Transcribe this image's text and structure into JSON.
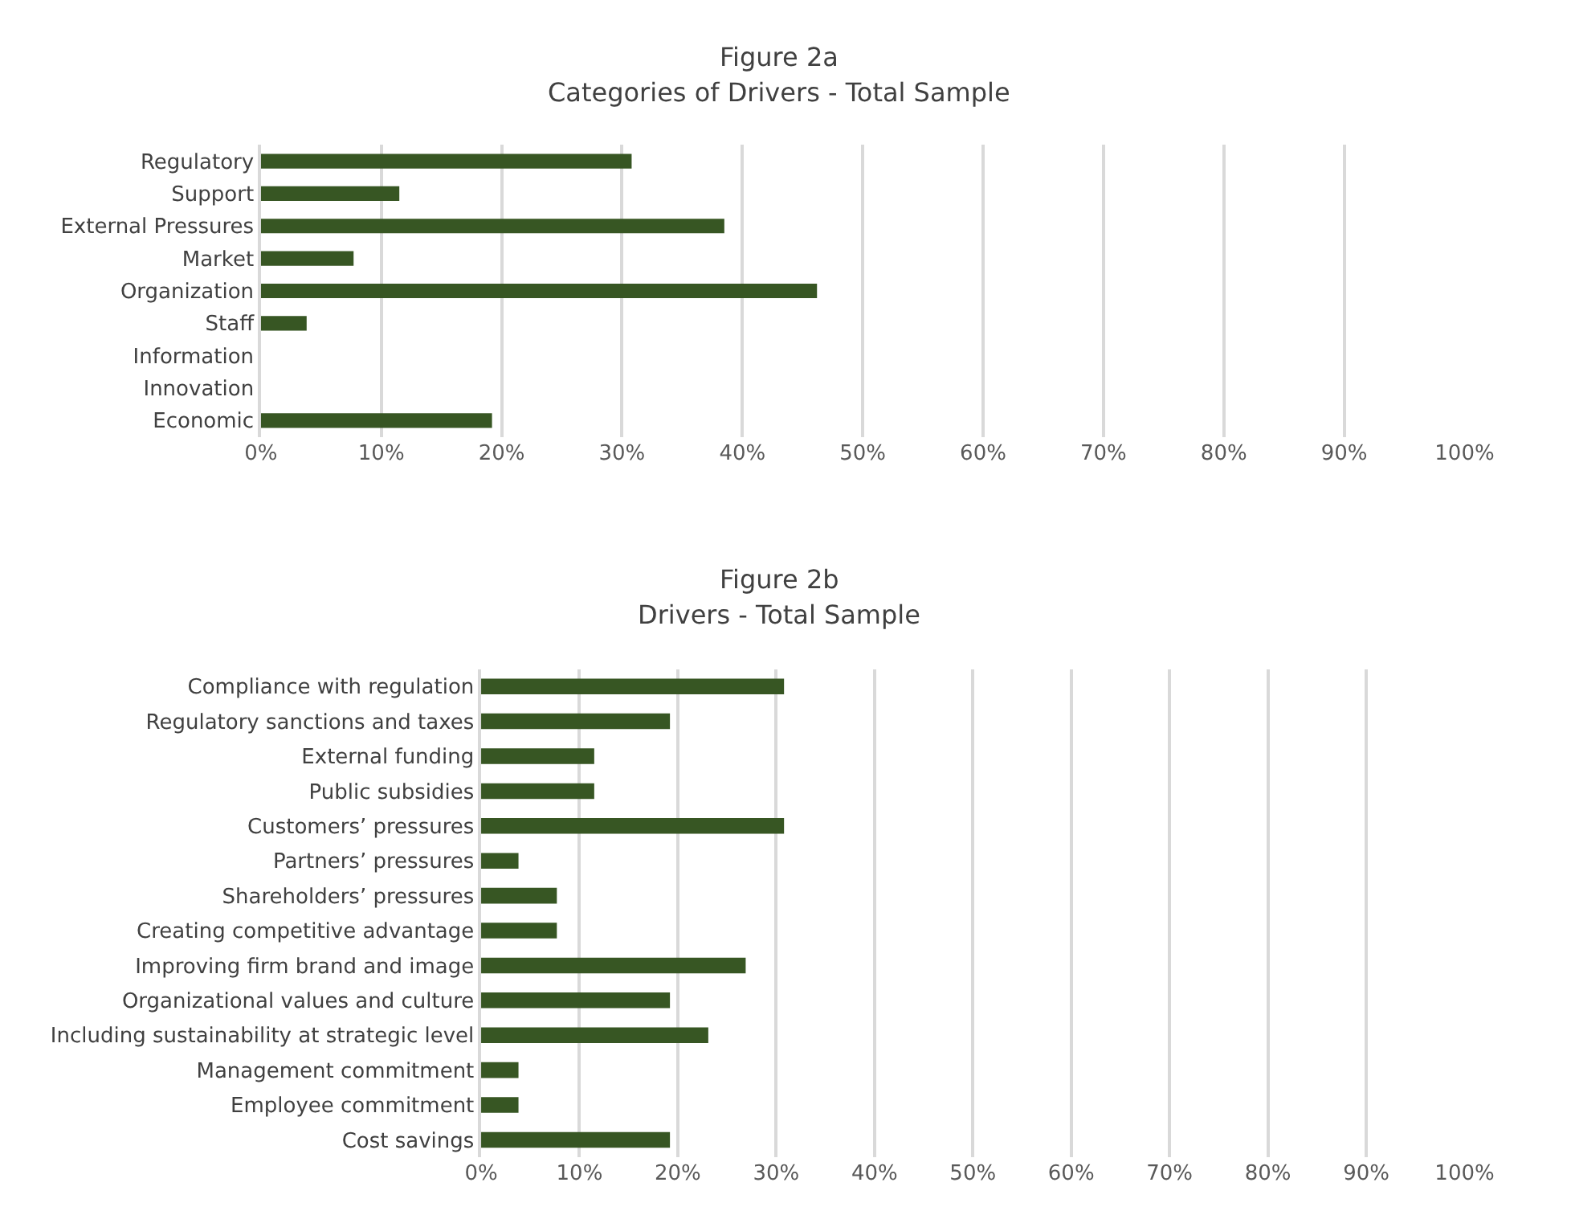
{
  "chart_data": [
    {
      "type": "bar",
      "orientation": "horizontal",
      "title": "Figure 2a",
      "subtitle": "Categories of Drivers - Total Sample",
      "categories": [
        "Regulatory",
        "Support",
        "External Pressures",
        "Market",
        "Organization",
        "Staff",
        "Information",
        "Innovation",
        "Economic"
      ],
      "values": [
        30.8,
        11.5,
        38.5,
        7.7,
        46.2,
        3.8,
        0,
        0,
        19.2
      ],
      "color": "#375623",
      "xlim": [
        0,
        100
      ],
      "xticks": [
        {
          "value": 0,
          "label": "0%"
        },
        {
          "value": 10,
          "label": "10%"
        },
        {
          "value": 20,
          "label": "20%"
        },
        {
          "value": 30,
          "label": "30%"
        },
        {
          "value": 40,
          "label": "40%"
        },
        {
          "value": 50,
          "label": "50%"
        },
        {
          "value": 60,
          "label": "60%"
        },
        {
          "value": 70,
          "label": "70%"
        },
        {
          "value": 80,
          "label": "80%"
        },
        {
          "value": 90,
          "label": "90%"
        },
        {
          "value": 100,
          "label": "100%"
        }
      ],
      "grid": "x"
    },
    {
      "type": "bar",
      "orientation": "horizontal",
      "title": "Figure 2b",
      "subtitle": "Drivers - Total Sample",
      "categories": [
        "Compliance with regulation",
        "Regulatory sanctions and taxes",
        "External funding",
        "Public subsidies",
        "Customers’ pressures",
        "Partners’ pressures",
        "Shareholders’ pressures",
        "Creating competitive advantage",
        "Improving firm brand and image",
        "Organizational values and culture",
        "Including sustainability at strategic level",
        "Management commitment",
        "Employee commitment",
        "Cost savings"
      ],
      "values": [
        30.8,
        19.2,
        11.5,
        11.5,
        30.8,
        3.8,
        7.7,
        7.7,
        26.9,
        19.2,
        23.1,
        3.8,
        3.8,
        19.2
      ],
      "color": "#375623",
      "xlim": [
        0,
        100
      ],
      "xticks": [
        {
          "value": 0,
          "label": "0%"
        },
        {
          "value": 10,
          "label": "10%"
        },
        {
          "value": 20,
          "label": "20%"
        },
        {
          "value": 30,
          "label": "30%"
        },
        {
          "value": 40,
          "label": "40%"
        },
        {
          "value": 50,
          "label": "50%"
        },
        {
          "value": 60,
          "label": "60%"
        },
        {
          "value": 70,
          "label": "70%"
        },
        {
          "value": 80,
          "label": "80%"
        },
        {
          "value": 90,
          "label": "90%"
        },
        {
          "value": 100,
          "label": "100%"
        }
      ],
      "grid": "x"
    }
  ]
}
